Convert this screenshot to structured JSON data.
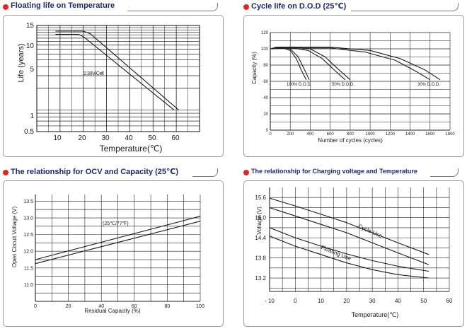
{
  "colors": {
    "accent": "#e52620",
    "title": "#1b2a6b",
    "frame": "#9a9a9a",
    "grid": "#222222"
  },
  "chart_data": [
    {
      "type": "line",
      "title": "Floating life on Temperature",
      "xlabel": "Temperature(℃)",
      "ylabel": "Life (years)",
      "xlim": [
        0,
        70
      ],
      "ylim": [
        0.5,
        15
      ],
      "yscale": "log",
      "xticks": [
        "10",
        "20",
        "30",
        "40",
        "50",
        "60"
      ],
      "yticks": [
        "15",
        "10",
        "5",
        "1",
        "0.5"
      ],
      "annotations": [
        "2.30V/Cell"
      ],
      "series": [
        {
          "name": "upper",
          "x": [
            8,
            20,
            23,
            61
          ],
          "y": [
            12.5,
            12.5,
            11.5,
            1
          ]
        },
        {
          "name": "lower",
          "x": [
            8,
            18,
            20,
            59
          ],
          "y": [
            11.3,
            11.3,
            10.5,
            1
          ]
        }
      ]
    },
    {
      "type": "line",
      "title": "Cycle life on D.O.D (25℃)",
      "xlabel": "Number of cycles (cycles)",
      "ylabel": "Capacity (%)",
      "xlim": [
        0,
        1800
      ],
      "ylim": [
        0,
        120
      ],
      "xticks": [
        "0",
        "200",
        "400",
        "600",
        "800",
        "1000",
        "1200",
        "1400",
        "1600",
        "1800"
      ],
      "yticks": [
        "0",
        "20",
        "40",
        "60",
        "80",
        "100",
        "120"
      ],
      "annotations": [
        "100% D.O.D.",
        "50% D.O.D.",
        "30% D.O.D."
      ],
      "series": [
        {
          "name": "100% D.O.D. (upper)",
          "x": [
            0,
            60,
            130,
            200,
            280,
            340,
            390
          ],
          "y": [
            100,
            102,
            102,
            100,
            90,
            75,
            62
          ]
        },
        {
          "name": "100% D.O.D. (lower)",
          "x": [
            0,
            60,
            130,
            200,
            260,
            310,
            360
          ],
          "y": [
            100,
            101,
            101,
            98,
            88,
            74,
            62
          ]
        },
        {
          "name": "50% D.O.D. (upper)",
          "x": [
            0,
            100,
            250,
            400,
            550,
            680,
            800
          ],
          "y": [
            100,
            102,
            102,
            100,
            90,
            75,
            62
          ]
        },
        {
          "name": "50% D.O.D. (lower)",
          "x": [
            0,
            100,
            220,
            380,
            520,
            640,
            750
          ],
          "y": [
            100,
            101,
            101,
            98,
            88,
            74,
            62
          ]
        },
        {
          "name": "30% D.O.D. (upper)",
          "x": [
            0,
            200,
            600,
            1000,
            1300,
            1550,
            1700
          ],
          "y": [
            100,
            102,
            102,
            98,
            88,
            74,
            62
          ]
        },
        {
          "name": "30% D.O.D. (lower)",
          "x": [
            0,
            200,
            600,
            950,
            1250,
            1450,
            1600
          ],
          "y": [
            100,
            101,
            101,
            96,
            86,
            73,
            62
          ]
        }
      ]
    },
    {
      "type": "line",
      "title": "The relationship  for OCV and Capacity (25℃)",
      "xlabel": "Residual Capacity (%)",
      "ylabel": "Open Circuit Voltage (V)",
      "xlim": [
        0,
        100
      ],
      "ylim": [
        10.5,
        13.7
      ],
      "xticks": [
        "0",
        "20",
        "40",
        "60",
        "80",
        "100"
      ],
      "yticks": [
        "11.0",
        "11.5",
        "12.0",
        "12.5",
        "13.0",
        "13.5"
      ],
      "annotations": [
        "(25℃/77℉)"
      ],
      "series": [
        {
          "name": "upper",
          "x": [
            0,
            100
          ],
          "y": [
            11.75,
            13.05
          ]
        },
        {
          "name": "lower",
          "x": [
            0,
            100
          ],
          "y": [
            11.63,
            12.9
          ]
        }
      ]
    },
    {
      "type": "line",
      "title": "The relationship for Charging voltage and Temperature",
      "xlabel": "Temperature(℃)",
      "ylabel": "Voltage (V)",
      "xlim": [
        -10,
        60
      ],
      "ylim": [
        12.8,
        15.9
      ],
      "xticks": [
        "- 10",
        "0",
        "10",
        "20",
        "30",
        "40",
        "50",
        "60"
      ],
      "yticks": [
        "15.6",
        "15.0",
        "14.4",
        "13.8",
        "13.2"
      ],
      "annotations": [
        "Cycle Use",
        "Floating Use"
      ],
      "series": [
        {
          "name": "Cycle Use (upper)",
          "x": [
            -10,
            0,
            10,
            20,
            30,
            40,
            52
          ],
          "y": [
            15.58,
            15.35,
            15.1,
            14.85,
            14.55,
            14.25,
            13.9
          ]
        },
        {
          "name": "Cycle Use (lower)",
          "x": [
            -10,
            0,
            10,
            20,
            30,
            40,
            52
          ],
          "y": [
            15.3,
            15.05,
            14.8,
            14.55,
            14.25,
            13.95,
            13.6
          ]
        },
        {
          "name": "Floating Use (upper)",
          "x": [
            -10,
            0,
            10,
            20,
            30,
            40,
            52
          ],
          "y": [
            14.7,
            14.4,
            14.15,
            13.92,
            13.72,
            13.55,
            13.4
          ]
        },
        {
          "name": "Floating Use (lower)",
          "x": [
            -10,
            0,
            10,
            20,
            30,
            40,
            52
          ],
          "y": [
            14.45,
            14.15,
            13.9,
            13.65,
            13.45,
            13.3,
            13.2
          ]
        }
      ]
    }
  ]
}
